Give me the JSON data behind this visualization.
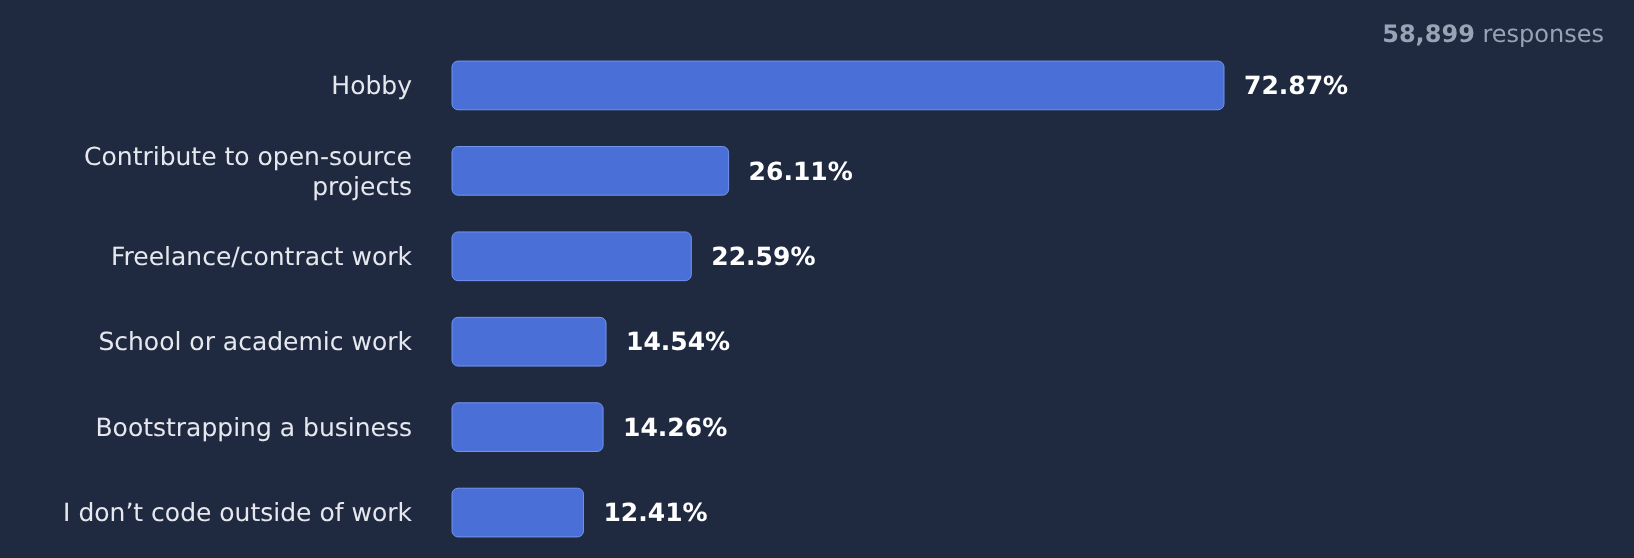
{
  "chart_data": {
    "type": "bar",
    "orientation": "horizontal",
    "categories": [
      "Hobby",
      "Contribute to open-source projects",
      "Freelance/contract work",
      "School or academic work",
      "Bootstrapping a business",
      "I don’t code outside of work"
    ],
    "values": [
      72.87,
      26.11,
      22.59,
      14.54,
      14.26,
      12.41
    ],
    "value_labels": [
      "72.87%",
      "26.11%",
      "22.59%",
      "14.54%",
      "14.26%",
      "12.41%"
    ],
    "color": "#4a6fd6",
    "annotations": [
      "58,899 responses"
    ]
  }
}
